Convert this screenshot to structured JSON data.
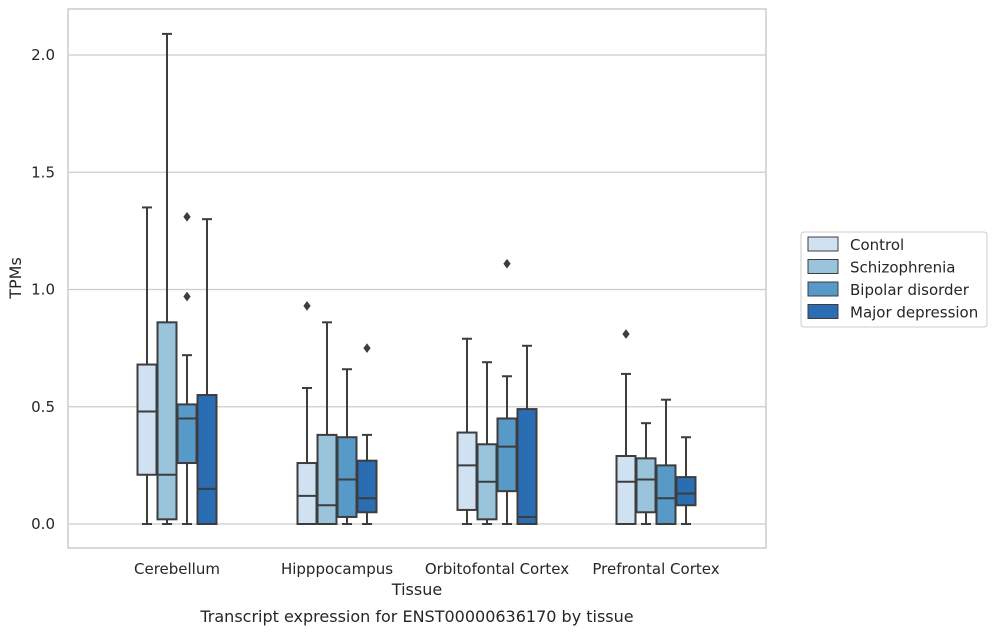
{
  "chart_data": {
    "type": "box",
    "title": "",
    "caption": "Transcript expression for ENST00000636170 by tissue",
    "xlabel": "Tissue",
    "ylabel": "TPMs",
    "ylim": [
      -0.1,
      2.2
    ],
    "yticks": [
      0.0,
      0.5,
      1.0,
      1.5,
      2.0
    ],
    "ytick_labels": [
      "0.0",
      "0.5",
      "1.0",
      "1.5",
      "2.0"
    ],
    "grid": "horizontal",
    "legend_position": "right",
    "categories": [
      "Cerebellum",
      "Hipppocampus",
      "Orbitofontal Cortex",
      "Prefrontal Cortex"
    ],
    "series": [
      {
        "name": "Control",
        "color": "#d0e1f2",
        "boxes": [
          {
            "whislo": 0.0,
            "q1": 0.21,
            "med": 0.48,
            "q3": 0.68,
            "whishi": 1.35,
            "fliers": []
          },
          {
            "whislo": 0.0,
            "q1": 0.0,
            "med": 0.12,
            "q3": 0.26,
            "whishi": 0.58,
            "fliers": [
              0.93
            ]
          },
          {
            "whislo": 0.0,
            "q1": 0.06,
            "med": 0.25,
            "q3": 0.39,
            "whishi": 0.79,
            "fliers": []
          },
          {
            "whislo": 0.0,
            "q1": 0.0,
            "med": 0.18,
            "q3": 0.29,
            "whishi": 0.64,
            "fliers": [
              0.81
            ]
          }
        ]
      },
      {
        "name": "Schizophrenia",
        "color": "#9ac4dc",
        "boxes": [
          {
            "whislo": 0.0,
            "q1": 0.02,
            "med": 0.21,
            "q3": 0.86,
            "whishi": 2.09,
            "fliers": []
          },
          {
            "whislo": 0.0,
            "q1": 0.0,
            "med": 0.08,
            "q3": 0.38,
            "whishi": 0.86,
            "fliers": []
          },
          {
            "whislo": 0.0,
            "q1": 0.02,
            "med": 0.18,
            "q3": 0.34,
            "whishi": 0.69,
            "fliers": []
          },
          {
            "whislo": 0.0,
            "q1": 0.05,
            "med": 0.19,
            "q3": 0.28,
            "whishi": 0.43,
            "fliers": []
          }
        ]
      },
      {
        "name": "Bipolar disorder",
        "color": "#5799c7",
        "boxes": [
          {
            "whislo": 0.0,
            "q1": 0.26,
            "med": 0.45,
            "q3": 0.51,
            "whishi": 0.72,
            "fliers": [
              0.97,
              1.31
            ]
          },
          {
            "whislo": 0.0,
            "q1": 0.03,
            "med": 0.19,
            "q3": 0.37,
            "whishi": 0.66,
            "fliers": []
          },
          {
            "whislo": 0.0,
            "q1": 0.14,
            "med": 0.33,
            "q3": 0.45,
            "whishi": 0.63,
            "fliers": [
              1.11
            ]
          },
          {
            "whislo": 0.0,
            "q1": 0.0,
            "med": 0.11,
            "q3": 0.25,
            "whishi": 0.53,
            "fliers": []
          }
        ]
      },
      {
        "name": "Major depression",
        "color": "#2a6db2",
        "boxes": [
          {
            "whislo": 0.0,
            "q1": 0.0,
            "med": 0.15,
            "q3": 0.55,
            "whishi": 1.3,
            "fliers": []
          },
          {
            "whislo": 0.0,
            "q1": 0.05,
            "med": 0.11,
            "q3": 0.27,
            "whishi": 0.38,
            "fliers": [
              0.75
            ]
          },
          {
            "whislo": 0.0,
            "q1": 0.0,
            "med": 0.03,
            "q3": 0.49,
            "whishi": 0.76,
            "fliers": []
          },
          {
            "whislo": 0.0,
            "q1": 0.08,
            "med": 0.13,
            "q3": 0.2,
            "whishi": 0.37,
            "fliers": []
          }
        ]
      }
    ]
  }
}
